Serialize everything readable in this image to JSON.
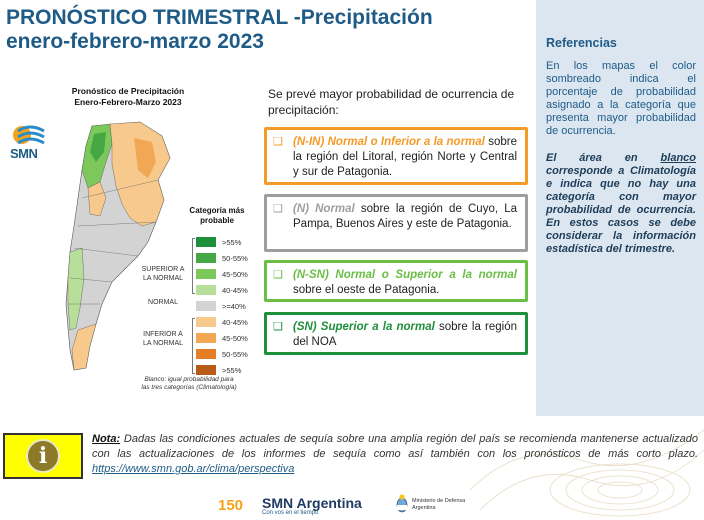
{
  "title": {
    "line1": "PRONÓSTICO TRIMESTRAL -Precipitación",
    "line2": "enero-febrero-marzo 2023"
  },
  "map": {
    "title_line1": "Pronóstico de Precipitación",
    "title_line2": "Enero-Febrero-Marzo 2023",
    "logo_text": "SMN",
    "legend_title_line1": "Categoría más",
    "legend_title_line2": "probable",
    "legend": [
      {
        "label": ">55%",
        "color": "#1e8f3a"
      },
      {
        "label": "50-55%",
        "color": "#45a845"
      },
      {
        "label": "45-50%",
        "color": "#7cc85b"
      },
      {
        "label": "40-45%",
        "color": "#b8df9a"
      },
      {
        "label": ">=40%",
        "color": "#d3d3d3"
      },
      {
        "label": "40-45%",
        "color": "#f7c98c"
      },
      {
        "label": "45-50%",
        "color": "#f1a754"
      },
      {
        "label": "50-55%",
        "color": "#e47d25"
      },
      {
        "label": ">55%",
        "color": "#b85b17"
      }
    ],
    "group_superior_line1": "SUPERIOR A",
    "group_superior_line2": "LA NORMAL",
    "group_normal": "NORMAL",
    "group_inferior_line1": "INFERIOR A",
    "group_inferior_line2": "LA NORMAL",
    "blank_note_line1": "Blanco: igual probabilidad para",
    "blank_note_line2": "las tres categorías (Climatología)"
  },
  "forecast": {
    "intro": "Se prevé mayor probabilidad de ocurrencia de precipitación:",
    "marker": "❑",
    "items": [
      {
        "lead": "(N-IN) Normal o Inferior a la normal",
        "text": "sobre la región del Litoral, región Norte y Central y sur de Patagonia."
      },
      {
        "lead": "(N) Normal",
        "text": "sobre la región de Cuyo, La Pampa, Buenos Aires y este de Patagonia."
      },
      {
        "lead": "(N-SN) Normal o Superior a la normal",
        "text": "sobre el oeste de Patagonia."
      },
      {
        "lead": "(SN) Superior a la normal",
        "text": "sobre la región del NOA"
      }
    ]
  },
  "references": {
    "title": "Referencias",
    "p1": "En los mapas el color sombreado indica el porcentaje de probabilidad asignado a la categoría que presenta mayor probabilidad de ocurrencia.",
    "p2_a": "El área en",
    "p2_blanco": "blanco",
    "p2_b": "corresponde a Climatología e indica que no hay una categoría con mayor probabilidad de ocurrencia. En estos casos se debe considerar la información estadística del trimestre."
  },
  "note": {
    "label": "Nota:",
    "text": "Dadas las condiciones actuales de sequía sobre una amplia región del país se recomienda mantenerse actualizado con las actualizaciones de los informes de sequía como así también con los pronósticos de más corto plazo.",
    "link": "https://www.smn.gob.ar/clima/perspectiva",
    "info_glyph": "i"
  },
  "footer": {
    "brand": "SMN Argentina",
    "anniversary": "150",
    "tagline": "Con vos en el tiempo",
    "ministry_line1": "Ministerio de Defensa",
    "ministry_line2": "Argentina"
  },
  "colors": {
    "title": "#1f5b87",
    "orange": "#f39a27",
    "gray": "#9e9e9e",
    "light_green": "#6abd45",
    "dark_green": "#1e8f3a",
    "refs_bg": "#dbe6f1"
  },
  "icons": [
    "smn-logo-icon",
    "info-icon",
    "checkbox-marker-icon",
    "argentina-shield-icon"
  ]
}
